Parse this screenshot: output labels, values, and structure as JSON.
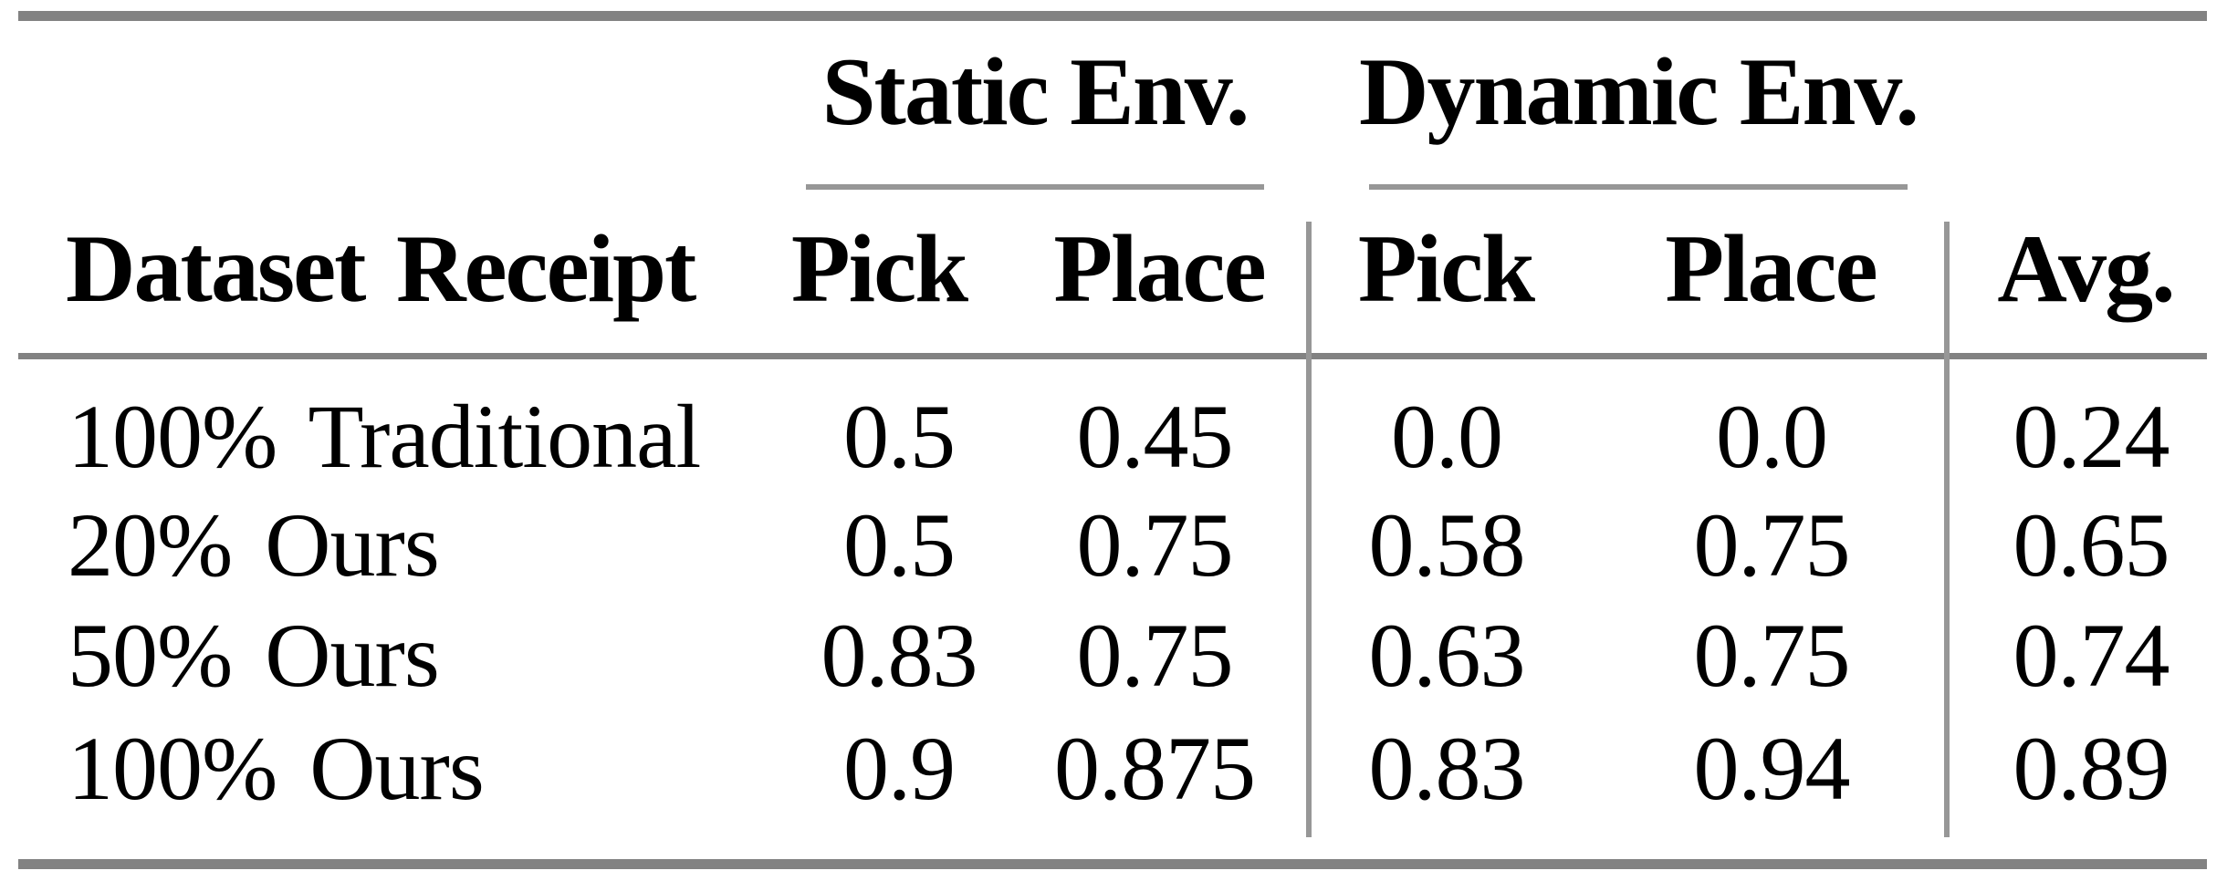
{
  "page": {
    "background_color": "#ffffff",
    "text_color": "#000000",
    "rule_heavy_color": "#828282",
    "rule_light_color": "#979797"
  },
  "table": {
    "groups": {
      "static": "Static Env.",
      "dynamic": "Dynamic Env."
    },
    "header": {
      "dataset": "Dataset Receipt",
      "static_pick": "Pick",
      "static_place": "Place",
      "dynamic_pick": "Pick",
      "dynamic_place": "Place",
      "avg": "Avg."
    },
    "rows": [
      {
        "label": "100% Traditional",
        "static_pick": "0.5",
        "static_place": "0.45",
        "dynamic_pick": "0.0",
        "dynamic_place": "0.0",
        "avg": "0.24"
      },
      {
        "label": "20% Ours",
        "static_pick": "0.5",
        "static_place": "0.75",
        "dynamic_pick": "0.58",
        "dynamic_place": "0.75",
        "avg": "0.65"
      },
      {
        "label": "50% Ours",
        "static_pick": "0.83",
        "static_place": "0.75",
        "dynamic_pick": "0.63",
        "dynamic_place": "0.75",
        "avg": "0.74"
      },
      {
        "label": "100% Ours",
        "static_pick": "0.9",
        "static_place": "0.875",
        "dynamic_pick": "0.83",
        "dynamic_place": "0.94",
        "avg": "0.89"
      }
    ]
  },
  "chart_data": {
    "type": "table",
    "title": "",
    "column_groups": [
      "",
      "Static Env.",
      "Static Env.",
      "Dynamic Env.",
      "Dynamic Env.",
      ""
    ],
    "columns": [
      "Dataset Receipt",
      "Pick",
      "Place",
      "Pick",
      "Place",
      "Avg."
    ],
    "rows": [
      [
        "100% Traditional",
        0.5,
        0.45,
        0.0,
        0.0,
        0.24
      ],
      [
        "20% Ours",
        0.5,
        0.75,
        0.58,
        0.75,
        0.65
      ],
      [
        "50% Ours",
        0.83,
        0.75,
        0.63,
        0.75,
        0.74
      ],
      [
        "100% Ours",
        0.9,
        0.875,
        0.83,
        0.94,
        0.89
      ]
    ]
  }
}
